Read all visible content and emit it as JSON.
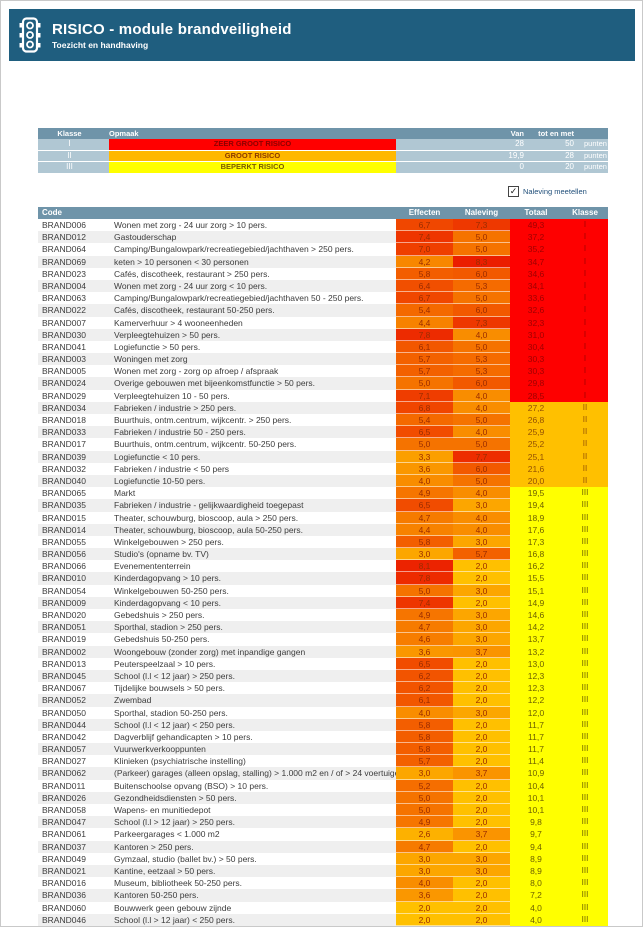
{
  "header": {
    "title": "RISICO - module brandveiligheid",
    "subtitle": "Toezicht en handhaving"
  },
  "legend": {
    "columns": {
      "klasse": "Klasse",
      "opmaak": "Opmaak",
      "van": "Van",
      "tot_en_met": "tot en met"
    },
    "rows": [
      {
        "klasse": "I",
        "label": "ZEER GROOT RISICO",
        "color": "#FF0000",
        "label_color": "#8B0000",
        "van": "28",
        "tot": "50",
        "unit": "punten"
      },
      {
        "klasse": "II",
        "label": "GROOT RISICO",
        "color": "#FFB800",
        "label_color": "#8B3A00",
        "van": "19,9",
        "tot": "28",
        "unit": "punten"
      },
      {
        "klasse": "III",
        "label": "BEPERKT RISICO",
        "color": "#FFFF00",
        "label_color": "#7A5B00",
        "van": "0",
        "tot": "20",
        "unit": "punten"
      }
    ]
  },
  "checkbox": {
    "label": "Naleving meetellen",
    "checked": true
  },
  "colors": {
    "header_bar": "#1F5E7F",
    "table_header": "#6F94A9",
    "legend_row": "#B0C7D3",
    "class_I": "#FE0000",
    "class_II": "#FFC000",
    "class_III": "#FFFF00",
    "scale": {
      "min": 2.0,
      "max": 8.3,
      "low": "#FFC000",
      "high": "#EB1E00"
    }
  },
  "table": {
    "columns": {
      "code": "Code",
      "effecten": "Effecten",
      "naleving": "Naleving",
      "totaal": "Totaal",
      "klasse": "Klasse"
    },
    "rows": [
      {
        "code": "BRAND006",
        "description": "Wonen met zorg - 24 uur zorg > 10 pers.",
        "effecten": "6,7",
        "naleving": "7,3",
        "totaal": "49,3",
        "klasse": "I"
      },
      {
        "code": "BRAND012",
        "description": "Gastouderschap",
        "effecten": "7,4",
        "naleving": "5,0",
        "totaal": "37,2",
        "klasse": "I"
      },
      {
        "code": "BRAND064",
        "description": "Camping/Bungalowpark/recreatiegebied/jachthaven > 250 pers.",
        "effecten": "7,0",
        "naleving": "5,0",
        "totaal": "35,2",
        "klasse": "I"
      },
      {
        "code": "BRAND069",
        "description": "keten > 10 personen < 30 personen",
        "effecten": "4,2",
        "naleving": "8,3",
        "totaal": "34,7",
        "klasse": "I"
      },
      {
        "code": "BRAND023",
        "description": "Cafés, discotheek, restaurant > 250 pers.",
        "effecten": "5,8",
        "naleving": "6,0",
        "totaal": "34,6",
        "klasse": "I"
      },
      {
        "code": "BRAND004",
        "description": "Wonen met zorg - 24 uur zorg < 10 pers.",
        "effecten": "6,4",
        "naleving": "5,3",
        "totaal": "34,1",
        "klasse": "I"
      },
      {
        "code": "BRAND063",
        "description": "Camping/Bungalowpark/recreatiegebied/jachthaven 50 - 250 pers.",
        "effecten": "6,7",
        "naleving": "5,0",
        "totaal": "33,6",
        "klasse": "I"
      },
      {
        "code": "BRAND022",
        "description": "Cafés, discotheek, restaurant 50-250 pers.",
        "effecten": "5,4",
        "naleving": "6,0",
        "totaal": "32,6",
        "klasse": "I"
      },
      {
        "code": "BRAND007",
        "description": "Kamerverhuur > 4 wooneenheden",
        "effecten": "4,4",
        "naleving": "7,3",
        "totaal": "32,3",
        "klasse": "I"
      },
      {
        "code": "BRAND030",
        "description": "Verpleegtehuizen > 50 pers.",
        "effecten": "7,8",
        "naleving": "4,0",
        "totaal": "31,0",
        "klasse": "I"
      },
      {
        "code": "BRAND041",
        "description": "Logiefunctie > 50 pers.",
        "effecten": "6,1",
        "naleving": "5,0",
        "totaal": "30,4",
        "klasse": "I"
      },
      {
        "code": "BRAND003",
        "description": "Woningen met zorg",
        "effecten": "5,7",
        "naleving": "5,3",
        "totaal": "30,3",
        "klasse": "I"
      },
      {
        "code": "BRAND005",
        "description": "Wonen met zorg - zorg op afroep / afspraak",
        "effecten": "5,7",
        "naleving": "5,3",
        "totaal": "30,3",
        "klasse": "I"
      },
      {
        "code": "BRAND024",
        "description": "Overige gebouwen met bijeenkomstfunctie > 50 pers.",
        "effecten": "5,0",
        "naleving": "6,0",
        "totaal": "29,8",
        "klasse": "I"
      },
      {
        "code": "BRAND029",
        "description": "Verpleegtehuizen 10 - 50 pers.",
        "effecten": "7,1",
        "naleving": "4,0",
        "totaal": "28,5",
        "klasse": "I"
      },
      {
        "code": "BRAND034",
        "description": "Fabrieken / industrie > 250 pers.",
        "effecten": "6,8",
        "naleving": "4,0",
        "totaal": "27,2",
        "klasse": "II"
      },
      {
        "code": "BRAND018",
        "description": "Buurthuis, ontm.centrum, wijkcentr. > 250 pers.",
        "effecten": "5,4",
        "naleving": "5,0",
        "totaal": "26,8",
        "klasse": "II"
      },
      {
        "code": "BRAND033",
        "description": "Fabrieken / industrie 50 - 250 pers.",
        "effecten": "6,5",
        "naleving": "4,0",
        "totaal": "25,9",
        "klasse": "II"
      },
      {
        "code": "BRAND017",
        "description": "Buurthuis, ontm.centrum, wijkcentr. 50-250 pers.",
        "effecten": "5,0",
        "naleving": "5,0",
        "totaal": "25,2",
        "klasse": "II"
      },
      {
        "code": "BRAND039",
        "description": "Logiefunctie < 10 pers.",
        "effecten": "3,3",
        "naleving": "7,7",
        "totaal": "25,1",
        "klasse": "II"
      },
      {
        "code": "BRAND032",
        "description": "Fabrieken / industrie < 50 pers",
        "effecten": "3,6",
        "naleving": "6,0",
        "totaal": "21,6",
        "klasse": "II"
      },
      {
        "code": "BRAND040",
        "description": "Logiefunctie 10-50 pers.",
        "effecten": "4,0",
        "naleving": "5,0",
        "totaal": "20,0",
        "klasse": "II"
      },
      {
        "code": "BRAND065",
        "description": "Markt",
        "effecten": "4,9",
        "naleving": "4,0",
        "totaal": "19,5",
        "klasse": "III"
      },
      {
        "code": "BRAND035",
        "description": "Fabrieken / industrie - gelijkwaardigheid toegepast",
        "effecten": "6,5",
        "naleving": "3,0",
        "totaal": "19,4",
        "klasse": "III"
      },
      {
        "code": "BRAND015",
        "description": "Theater, schouwburg, bioscoop, aula > 250 pers.",
        "effecten": "4,7",
        "naleving": "4,0",
        "totaal": "18,9",
        "klasse": "III"
      },
      {
        "code": "BRAND014",
        "description": "Theater, schouwburg, bioscoop, aula 50-250 pers.",
        "effecten": "4,4",
        "naleving": "4,0",
        "totaal": "17,6",
        "klasse": "III"
      },
      {
        "code": "BRAND055",
        "description": "Winkelgebouwen > 250 pers.",
        "effecten": "5,8",
        "naleving": "3,0",
        "totaal": "17,3",
        "klasse": "III"
      },
      {
        "code": "BRAND056",
        "description": "Studio's (opname bv. TV)",
        "effecten": "3,0",
        "naleving": "5,7",
        "totaal": "16,8",
        "klasse": "III"
      },
      {
        "code": "BRAND066",
        "description": "Evenemententerrein",
        "effecten": "8,1",
        "naleving": "2,0",
        "totaal": "16,2",
        "klasse": "III"
      },
      {
        "code": "BRAND010",
        "description": "Kinderdagopvang > 10 pers.",
        "effecten": "7,8",
        "naleving": "2,0",
        "totaal": "15,5",
        "klasse": "III"
      },
      {
        "code": "BRAND054",
        "description": "Winkelgebouwen 50-250 pers.",
        "effecten": "5,0",
        "naleving": "3,0",
        "totaal": "15,1",
        "klasse": "III"
      },
      {
        "code": "BRAND009",
        "description": "Kinderdagopvang < 10 pers.",
        "effecten": "7,4",
        "naleving": "2,0",
        "totaal": "14,9",
        "klasse": "III"
      },
      {
        "code": "BRAND020",
        "description": "Gebedshuis > 250 pers.",
        "effecten": "4,9",
        "naleving": "3,0",
        "totaal": "14,6",
        "klasse": "III"
      },
      {
        "code": "BRAND051",
        "description": "Sporthal, stadion > 250 pers.",
        "effecten": "4,7",
        "naleving": "3,0",
        "totaal": "14,2",
        "klasse": "III"
      },
      {
        "code": "BRAND019",
        "description": "Gebedshuis 50-250 pers.",
        "effecten": "4,6",
        "naleving": "3,0",
        "totaal": "13,7",
        "klasse": "III"
      },
      {
        "code": "BRAND002",
        "description": "Woongebouw (zonder zorg) met inpandige gangen",
        "effecten": "3,6",
        "naleving": "3,7",
        "totaal": "13,2",
        "klasse": "III"
      },
      {
        "code": "BRAND013",
        "description": "Peuterspeelzaal > 10 pers.",
        "effecten": "6,5",
        "naleving": "2,0",
        "totaal": "13,0",
        "klasse": "III"
      },
      {
        "code": "BRAND045",
        "description": "School (l.l < 12 jaar) > 250 pers.",
        "effecten": "6,2",
        "naleving": "2,0",
        "totaal": "12,3",
        "klasse": "III"
      },
      {
        "code": "BRAND067",
        "description": "Tijdelijke bouwsels > 50 pers.",
        "effecten": "6,2",
        "naleving": "2,0",
        "totaal": "12,3",
        "klasse": "III"
      },
      {
        "code": "BRAND052",
        "description": "Zwembad",
        "effecten": "6,1",
        "naleving": "2,0",
        "totaal": "12,2",
        "klasse": "III"
      },
      {
        "code": "BRAND050",
        "description": "Sporthal, stadion 50-250 pers.",
        "effecten": "4,0",
        "naleving": "3,0",
        "totaal": "12,0",
        "klasse": "III"
      },
      {
        "code": "BRAND044",
        "description": "School (l.l < 12 jaar) < 250 pers.",
        "effecten": "5,8",
        "naleving": "2,0",
        "totaal": "11,7",
        "klasse": "III"
      },
      {
        "code": "BRAND042",
        "description": "Dagverblijf gehandicapten > 10 pers.",
        "effecten": "5,8",
        "naleving": "2,0",
        "totaal": "11,7",
        "klasse": "III"
      },
      {
        "code": "BRAND057",
        "description": "Vuurwerkverkooppunten",
        "effecten": "5,8",
        "naleving": "2,0",
        "totaal": "11,7",
        "klasse": "III"
      },
      {
        "code": "BRAND027",
        "description": "Klinieken (psychiatrische instelling)",
        "effecten": "5,7",
        "naleving": "2,0",
        "totaal": "11,4",
        "klasse": "III"
      },
      {
        "code": "BRAND062",
        "description": "(Parkeer) garages (alleen opslag, stalling) > 1.000 m2 en / of > 24 voertuigen",
        "effecten": "3,0",
        "naleving": "3,7",
        "totaal": "10,9",
        "klasse": "III"
      },
      {
        "code": "BRAND011",
        "description": "Buitenschoolse opvang (BSO) > 10 pers.",
        "effecten": "5,2",
        "naleving": "2,0",
        "totaal": "10,4",
        "klasse": "III"
      },
      {
        "code": "BRAND026",
        "description": "Gezondheidsdiensten > 50 pers.",
        "effecten": "5,0",
        "naleving": "2,0",
        "totaal": "10,1",
        "klasse": "III"
      },
      {
        "code": "BRAND058",
        "description": "Wapens- en munitiedepot",
        "effecten": "5,0",
        "naleving": "2,0",
        "totaal": "10,1",
        "klasse": "III"
      },
      {
        "code": "BRAND047",
        "description": "School (l.l > 12 jaar) > 250 pers.",
        "effecten": "4,9",
        "naleving": "2,0",
        "totaal": "9,8",
        "klasse": "III"
      },
      {
        "code": "BRAND061",
        "description": "Parkeergarages < 1.000 m2",
        "effecten": "2,6",
        "naleving": "3,7",
        "totaal": "9,7",
        "klasse": "III"
      },
      {
        "code": "BRAND037",
        "description": "Kantoren > 250 pers.",
        "effecten": "4,7",
        "naleving": "2,0",
        "totaal": "9,4",
        "klasse": "III"
      },
      {
        "code": "BRAND049",
        "description": "Gymzaal, studio (ballet bv.) > 50 pers.",
        "effecten": "3,0",
        "naleving": "3,0",
        "totaal": "8,9",
        "klasse": "III"
      },
      {
        "code": "BRAND021",
        "description": "Kantine, eetzaal > 50 pers.",
        "effecten": "3,0",
        "naleving": "3,0",
        "totaal": "8,9",
        "klasse": "III"
      },
      {
        "code": "BRAND016",
        "description": "Museum, bibliotheek 50-250 pers.",
        "effecten": "4,0",
        "naleving": "2,0",
        "totaal": "8,0",
        "klasse": "III"
      },
      {
        "code": "BRAND036",
        "description": "Kantoren 50-250 pers.",
        "effecten": "3,6",
        "naleving": "2,0",
        "totaal": "7,2",
        "klasse": "III"
      },
      {
        "code": "BRAND060",
        "description": "Bouwwerk geen gebouw zijnde",
        "effecten": "2,0",
        "naleving": "2,0",
        "totaal": "4,0",
        "klasse": "III"
      },
      {
        "code": "BRAND046",
        "description": "School (l.l > 12 jaar) < 250 pers.",
        "effecten": "2,0",
        "naleving": "2,0",
        "totaal": "4,0",
        "klasse": "III"
      }
    ]
  }
}
